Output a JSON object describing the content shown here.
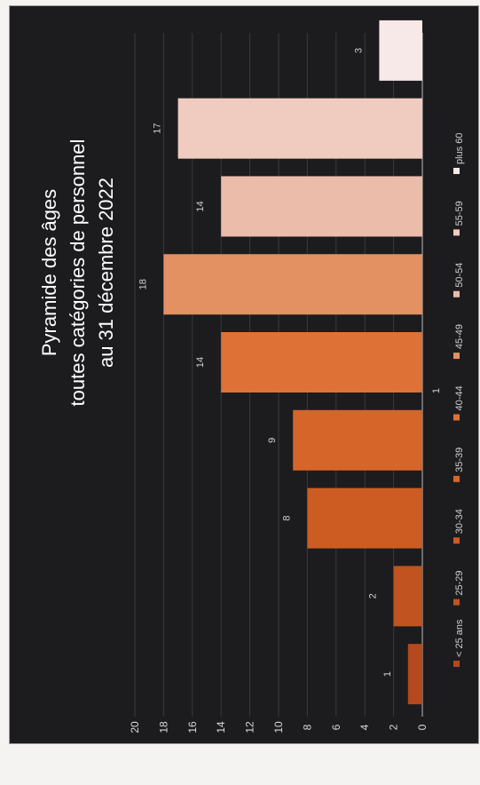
{
  "chart_data": {
    "type": "bar",
    "orientation": "rotated-90-ccw",
    "title_lines": [
      "Pyramide des âges",
      "toutes catégories de personnel",
      "au 31 décembre 2022"
    ],
    "categories": [
      "< 25 ans",
      "25-29",
      "30-34",
      "35-39",
      "40-44",
      "45-49",
      "50-54",
      "55-59",
      "plus 60"
    ],
    "values": [
      1,
      2,
      8,
      9,
      14,
      18,
      14,
      17,
      3
    ],
    "colors": [
      "#b3491d",
      "#c0531f",
      "#cd5c22",
      "#d6652a",
      "#de7236",
      "#e39163",
      "#ecbcab",
      "#f0cbbf",
      "#f6e9e7"
    ],
    "ylim": [
      0,
      20
    ],
    "yticks": [
      0,
      2,
      4,
      6,
      8,
      10,
      12,
      14,
      16,
      18,
      20
    ],
    "extra_annotation": "1",
    "grid": true,
    "legend_position": "bottom"
  }
}
